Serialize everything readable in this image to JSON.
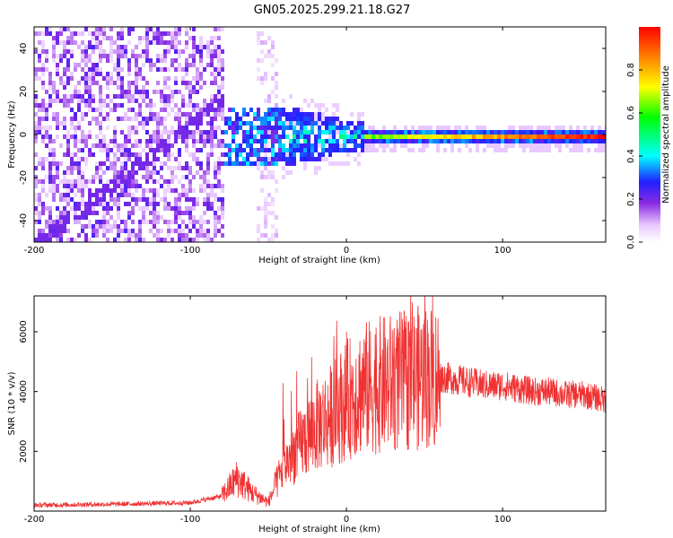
{
  "title": "GN05.2025.299.21.18.G27",
  "chart_data": [
    {
      "type": "heatmap",
      "xlabel": "Height of straight line (km)",
      "ylabel": "Frequency (Hz)",
      "xlim": [
        -200,
        166
      ],
      "ylim": [
        -50,
        50
      ],
      "xticks": [
        -200,
        -100,
        0,
        100
      ],
      "yticks": [
        -40,
        -20,
        0,
        20,
        40
      ],
      "colorbar": {
        "label": "Normalized spectral amplitude",
        "range": [
          0,
          1
        ],
        "ticks": [
          0.0,
          0.2,
          0.4,
          0.6,
          0.8
        ],
        "tick_labels": [
          "0.0",
          "0.2",
          "0.4",
          "0.6",
          "0.8"
        ]
      },
      "features": [
        {
          "x_range": [
            -200,
            -80
          ],
          "amplitude": 0.15,
          "spread_hz": 50,
          "note": "diffuse noise"
        },
        {
          "x_range": [
            -80,
            10
          ],
          "amplitude": 0.35,
          "spread_hz": 12,
          "note": "signal emerging near 0 Hz"
        },
        {
          "x_range": [
            10,
            166
          ],
          "amplitude": 0.95,
          "spread_hz": 3,
          "note": "strong narrow line near 0 Hz"
        }
      ]
    },
    {
      "type": "line",
      "xlabel": "Height of straight line (km)",
      "ylabel": "SNR (10 * v/v)",
      "xlim": [
        -200,
        166
      ],
      "ylim": [
        0,
        7200
      ],
      "xticks": [
        -200,
        -100,
        0,
        100
      ],
      "yticks": [
        2000,
        4000,
        6000
      ],
      "color": "#f03232",
      "series": [
        {
          "name": "SNR",
          "x": [
            -200,
            -150,
            -100,
            -80,
            -70,
            -60,
            -50,
            -40,
            -30,
            -20,
            -10,
            0,
            10,
            20,
            30,
            40,
            50,
            60,
            70,
            80,
            90,
            100,
            110,
            120,
            130,
            140,
            150,
            160,
            166
          ],
          "y": [
            200,
            230,
            280,
            500,
            1100,
            600,
            300,
            1500,
            2200,
            2800,
            3200,
            3700,
            4100,
            4200,
            4300,
            4400,
            4500,
            4500,
            4400,
            4300,
            4200,
            4200,
            4100,
            4000,
            4000,
            3900,
            3900,
            3800,
            3700
          ]
        }
      ]
    }
  ]
}
